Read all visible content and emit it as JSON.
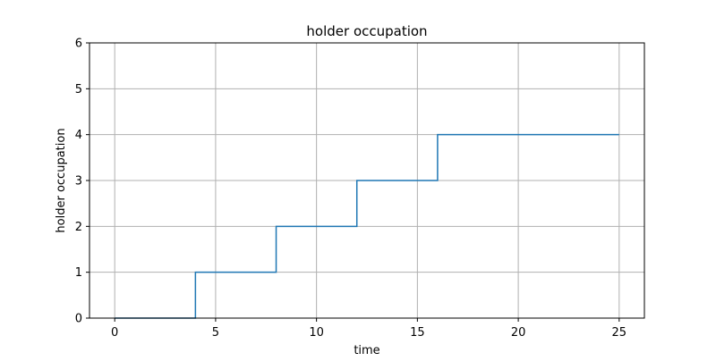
{
  "chart_data": {
    "type": "line",
    "drawstyle": "steps-post",
    "title": "holder occupation",
    "xlabel": "time",
    "ylabel": "holder occupation",
    "xlim": [
      -1.25,
      26.25
    ],
    "ylim": [
      0,
      6
    ],
    "xticks": [
      0,
      5,
      10,
      15,
      20,
      25
    ],
    "yticks": [
      0,
      1,
      2,
      3,
      4,
      5,
      6
    ],
    "grid": true,
    "series": [
      {
        "name": "holder occupation",
        "color": "#1f77b4",
        "x": [
          0,
          4,
          8,
          12,
          16,
          25
        ],
        "y": [
          0,
          1,
          2,
          3,
          4,
          4
        ]
      }
    ]
  }
}
